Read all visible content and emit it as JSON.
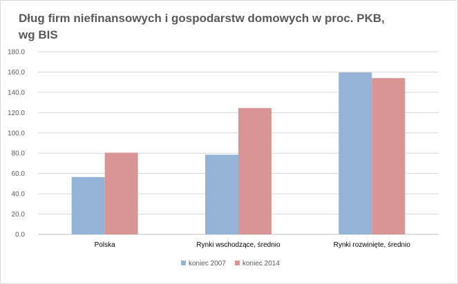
{
  "chart_data": {
    "type": "bar",
    "title_lines": [
      "Dług firm niefinansowych i gospodarstw domowych w proc. PKB,",
      "wg BIS"
    ],
    "categories": [
      "Polska",
      "Rynki wschodzące, średnio",
      "Rynki rozwinięte, średnio"
    ],
    "series": [
      {
        "name": "koniec 2007",
        "values": [
          56.5,
          78.5,
          159.5
        ],
        "color": "#95b3d7"
      },
      {
        "name": "koniec 2014",
        "values": [
          80.5,
          124.5,
          154.0
        ],
        "color": "#d99594"
      }
    ],
    "ylim": [
      0,
      180
    ],
    "yticks": [
      "0.0",
      "20.0",
      "40.0",
      "60.0",
      "80.0",
      "100.0",
      "120.0",
      "140.0",
      "160.0",
      "180.0"
    ],
    "grid": true,
    "legend": "bottom"
  }
}
